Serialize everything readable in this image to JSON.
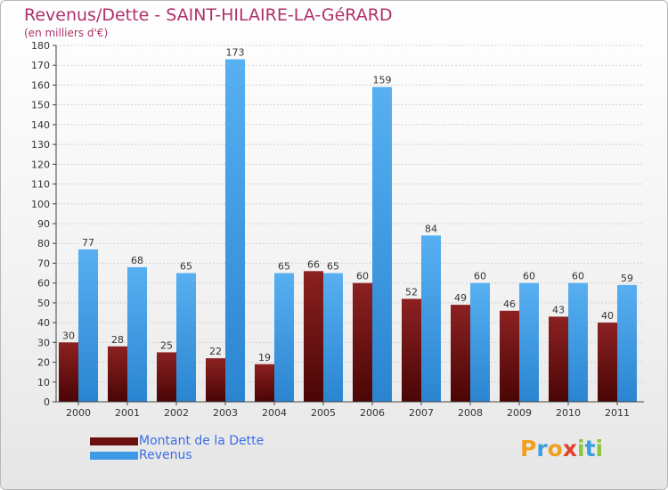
{
  "header": {
    "title": "Revenus/Dette - SAINT-HILAIRE-LA-GéRARD",
    "subtitle": "(en milliers d'€)"
  },
  "colors": {
    "debt": "#6b0f0f",
    "revenue": "#3d9ae6",
    "title": "#b0306a",
    "legend_text": "#3a6ee8",
    "grid": "#d2d2d2"
  },
  "legend": [
    {
      "label": "Montant de la Dette",
      "color": "#6b0f0f"
    },
    {
      "label": "Revenus",
      "color": "#3d9ae6"
    }
  ],
  "logo": {
    "text": "Proxiti",
    "letters": [
      {
        "ch": "P",
        "color": "#f0a020"
      },
      {
        "ch": "r",
        "color": "#3a9ee0"
      },
      {
        "ch": "o",
        "color": "#f0a020"
      },
      {
        "ch": "x",
        "color": "#e0402c"
      },
      {
        "ch": "i",
        "color": "#8cc63e"
      },
      {
        "ch": "t",
        "color": "#3a9ee0"
      },
      {
        "ch": "i",
        "color": "#8cc63e"
      }
    ]
  },
  "chart_data": {
    "type": "bar",
    "title": "Revenus/Dette - SAINT-HILAIRE-LA-GéRARD",
    "subtitle": "(en milliers d'€)",
    "categories": [
      "2000",
      "2001",
      "2002",
      "2003",
      "2004",
      "2005",
      "2006",
      "2007",
      "2008",
      "2009",
      "2010",
      "2011"
    ],
    "series": [
      {
        "name": "Montant de la Dette",
        "values": [
          30,
          28,
          25,
          22,
          19,
          66,
          60,
          52,
          49,
          46,
          43,
          40
        ]
      },
      {
        "name": "Revenus",
        "values": [
          77,
          68,
          65,
          173,
          65,
          65,
          159,
          84,
          60,
          60,
          60,
          59
        ]
      }
    ],
    "ylim": [
      0,
      180
    ],
    "yticks": [
      0,
      10,
      20,
      30,
      40,
      50,
      60,
      70,
      80,
      90,
      100,
      110,
      120,
      130,
      140,
      150,
      160,
      170,
      180
    ],
    "grid": true,
    "legend_position": "bottom-left"
  }
}
